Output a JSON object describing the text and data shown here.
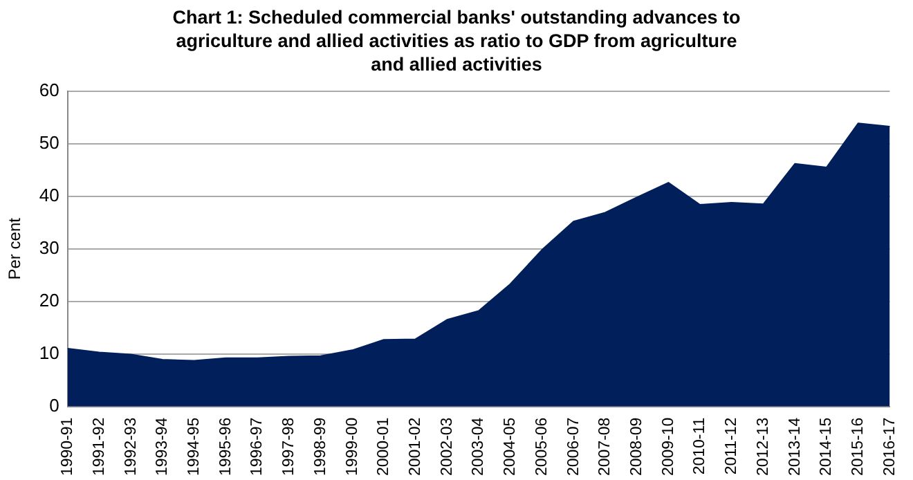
{
  "chart_data": {
    "type": "area",
    "title": "Chart 1: Scheduled commercial banks' outstanding advances to agriculture and allied activities as ratio to GDP from agriculture and allied activities",
    "ylabel": "Per cent",
    "categories": [
      "1990-91",
      "1991-92",
      "1992-93",
      "1993-94",
      "1994-95",
      "1995-96",
      "1996-97",
      "1997-98",
      "1998-99",
      "1999-00",
      "2000-01",
      "2001-02",
      "2002-03",
      "2003-04",
      "2004-05",
      "2005-06",
      "2006-07",
      "2007-08",
      "2008-09",
      "2009-10",
      "2010-11",
      "2011-12",
      "2012-13",
      "2013-14",
      "2014-15",
      "2015-16",
      "2016-17"
    ],
    "series": [
      {
        "color": "#001f5b",
        "values": [
          11,
          10.3,
          9.9,
          8.9,
          8.7,
          9.2,
          9.2,
          9.5,
          9.6,
          10.7,
          12.7,
          12.8,
          16.5,
          18.2,
          23.3,
          29.8,
          35.2,
          36.9,
          39.8,
          42.6,
          38.4,
          38.8,
          38.5,
          46.2,
          45.5,
          53.9,
          53.3
        ]
      }
    ],
    "ylim": [
      0,
      60
    ],
    "yticks": [
      0,
      10,
      20,
      30,
      40,
      50,
      60
    ],
    "grid": "y",
    "legend": false
  }
}
